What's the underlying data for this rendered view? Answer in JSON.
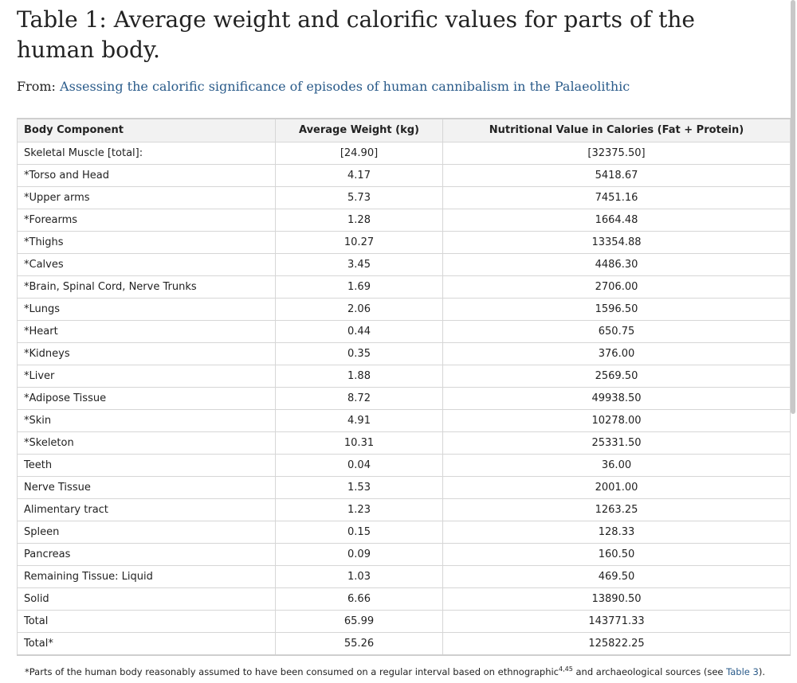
{
  "title": "Table 1: Average weight and calorific values for parts of the human body.",
  "from_label": "From:",
  "from_link": "Assessing the calorific significance of episodes of human cannibalism in the Palaeolithic",
  "table": {
    "headers": [
      "Body Component",
      "Average Weight (kg)",
      "Nutritional Value in Calories (Fat + Protein)"
    ],
    "rows": [
      {
        "component": "Skeletal Muscle [total]:",
        "weight": "[24.90]",
        "calories": "[32375.50]"
      },
      {
        "component": "*Torso and Head",
        "weight": "4.17",
        "calories": "5418.67"
      },
      {
        "component": "*Upper arms",
        "weight": "5.73",
        "calories": "7451.16"
      },
      {
        "component": "*Forearms",
        "weight": "1.28",
        "calories": "1664.48"
      },
      {
        "component": "*Thighs",
        "weight": "10.27",
        "calories": "13354.88"
      },
      {
        "component": "*Calves",
        "weight": "3.45",
        "calories": "4486.30"
      },
      {
        "component": "*Brain, Spinal Cord, Nerve Trunks",
        "weight": "1.69",
        "calories": "2706.00"
      },
      {
        "component": "*Lungs",
        "weight": "2.06",
        "calories": "1596.50"
      },
      {
        "component": "*Heart",
        "weight": "0.44",
        "calories": "650.75"
      },
      {
        "component": "*Kidneys",
        "weight": "0.35",
        "calories": "376.00"
      },
      {
        "component": "*Liver",
        "weight": "1.88",
        "calories": "2569.50"
      },
      {
        "component": "*Adipose Tissue",
        "weight": "8.72",
        "calories": "49938.50"
      },
      {
        "component": "*Skin",
        "weight": "4.91",
        "calories": "10278.00"
      },
      {
        "component": "*Skeleton",
        "weight": "10.31",
        "calories": "25331.50"
      },
      {
        "component": "Teeth",
        "weight": "0.04",
        "calories": "36.00"
      },
      {
        "component": "Nerve Tissue",
        "weight": "1.53",
        "calories": "2001.00"
      },
      {
        "component": "Alimentary tract",
        "weight": "1.23",
        "calories": "1263.25"
      },
      {
        "component": "Spleen",
        "weight": "0.15",
        "calories": "128.33"
      },
      {
        "component": "Pancreas",
        "weight": "0.09",
        "calories": "160.50"
      },
      {
        "component": "Remaining Tissue: Liquid",
        "weight": "1.03",
        "calories": "469.50"
      },
      {
        "component": "Solid",
        "weight": "6.66",
        "calories": "13890.50"
      },
      {
        "component": "Total",
        "weight": "65.99",
        "calories": "143771.33"
      },
      {
        "component": "Total*",
        "weight": "55.26",
        "calories": "125822.25"
      }
    ]
  },
  "footnote": {
    "before": "*Parts of the human body reasonably assumed to have been consumed on a regular interval based on ethnographic",
    "sup": "4,45",
    "middle": " and archaeological sources (see ",
    "link": "Table 3",
    "after": ")."
  }
}
